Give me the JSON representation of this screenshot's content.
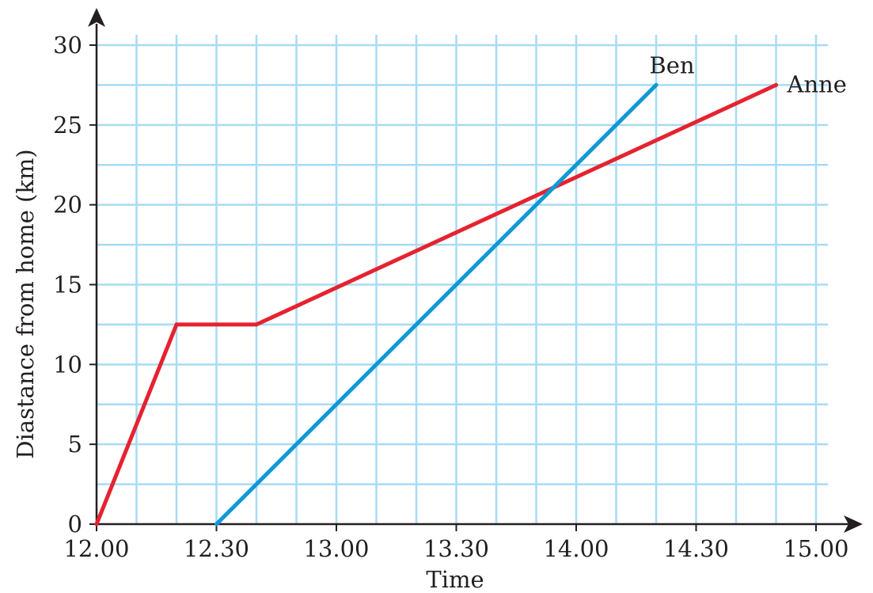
{
  "chart_data": {
    "type": "line",
    "title": "",
    "xlabel": "Time",
    "ylabel": "Diastance from home (km)",
    "x_tick_labels": [
      "12.00",
      "12.30",
      "13.00",
      "13.30",
      "14.00",
      "14.30",
      "15.00"
    ],
    "x_tick_values": [
      0,
      30,
      60,
      90,
      120,
      150,
      180
    ],
    "y_tick_labels": [
      "0",
      "5",
      "10",
      "15",
      "20",
      "25",
      "30"
    ],
    "y_tick_values": [
      0,
      5,
      10,
      15,
      20,
      25,
      30
    ],
    "xlim": [
      "12.00",
      "15.00"
    ],
    "ylim": [
      0,
      30
    ],
    "grid": true,
    "legend": "direct labels at line ends",
    "series": [
      {
        "name": "Anne",
        "color": "#e52330",
        "points": [
          {
            "x": "12.00",
            "y": 0
          },
          {
            "x": "12.20",
            "y": 12.5
          },
          {
            "x": "12.40",
            "y": 12.5
          },
          {
            "x": "14.50",
            "y": 27.5
          }
        ]
      },
      {
        "name": "Ben",
        "color": "#0e98d6",
        "points": [
          {
            "x": "12.30",
            "y": 0
          },
          {
            "x": "14.20",
            "y": 27.5
          }
        ]
      }
    ],
    "colors": {
      "grid": "#a6dcf5",
      "axis": "#231f20"
    }
  }
}
